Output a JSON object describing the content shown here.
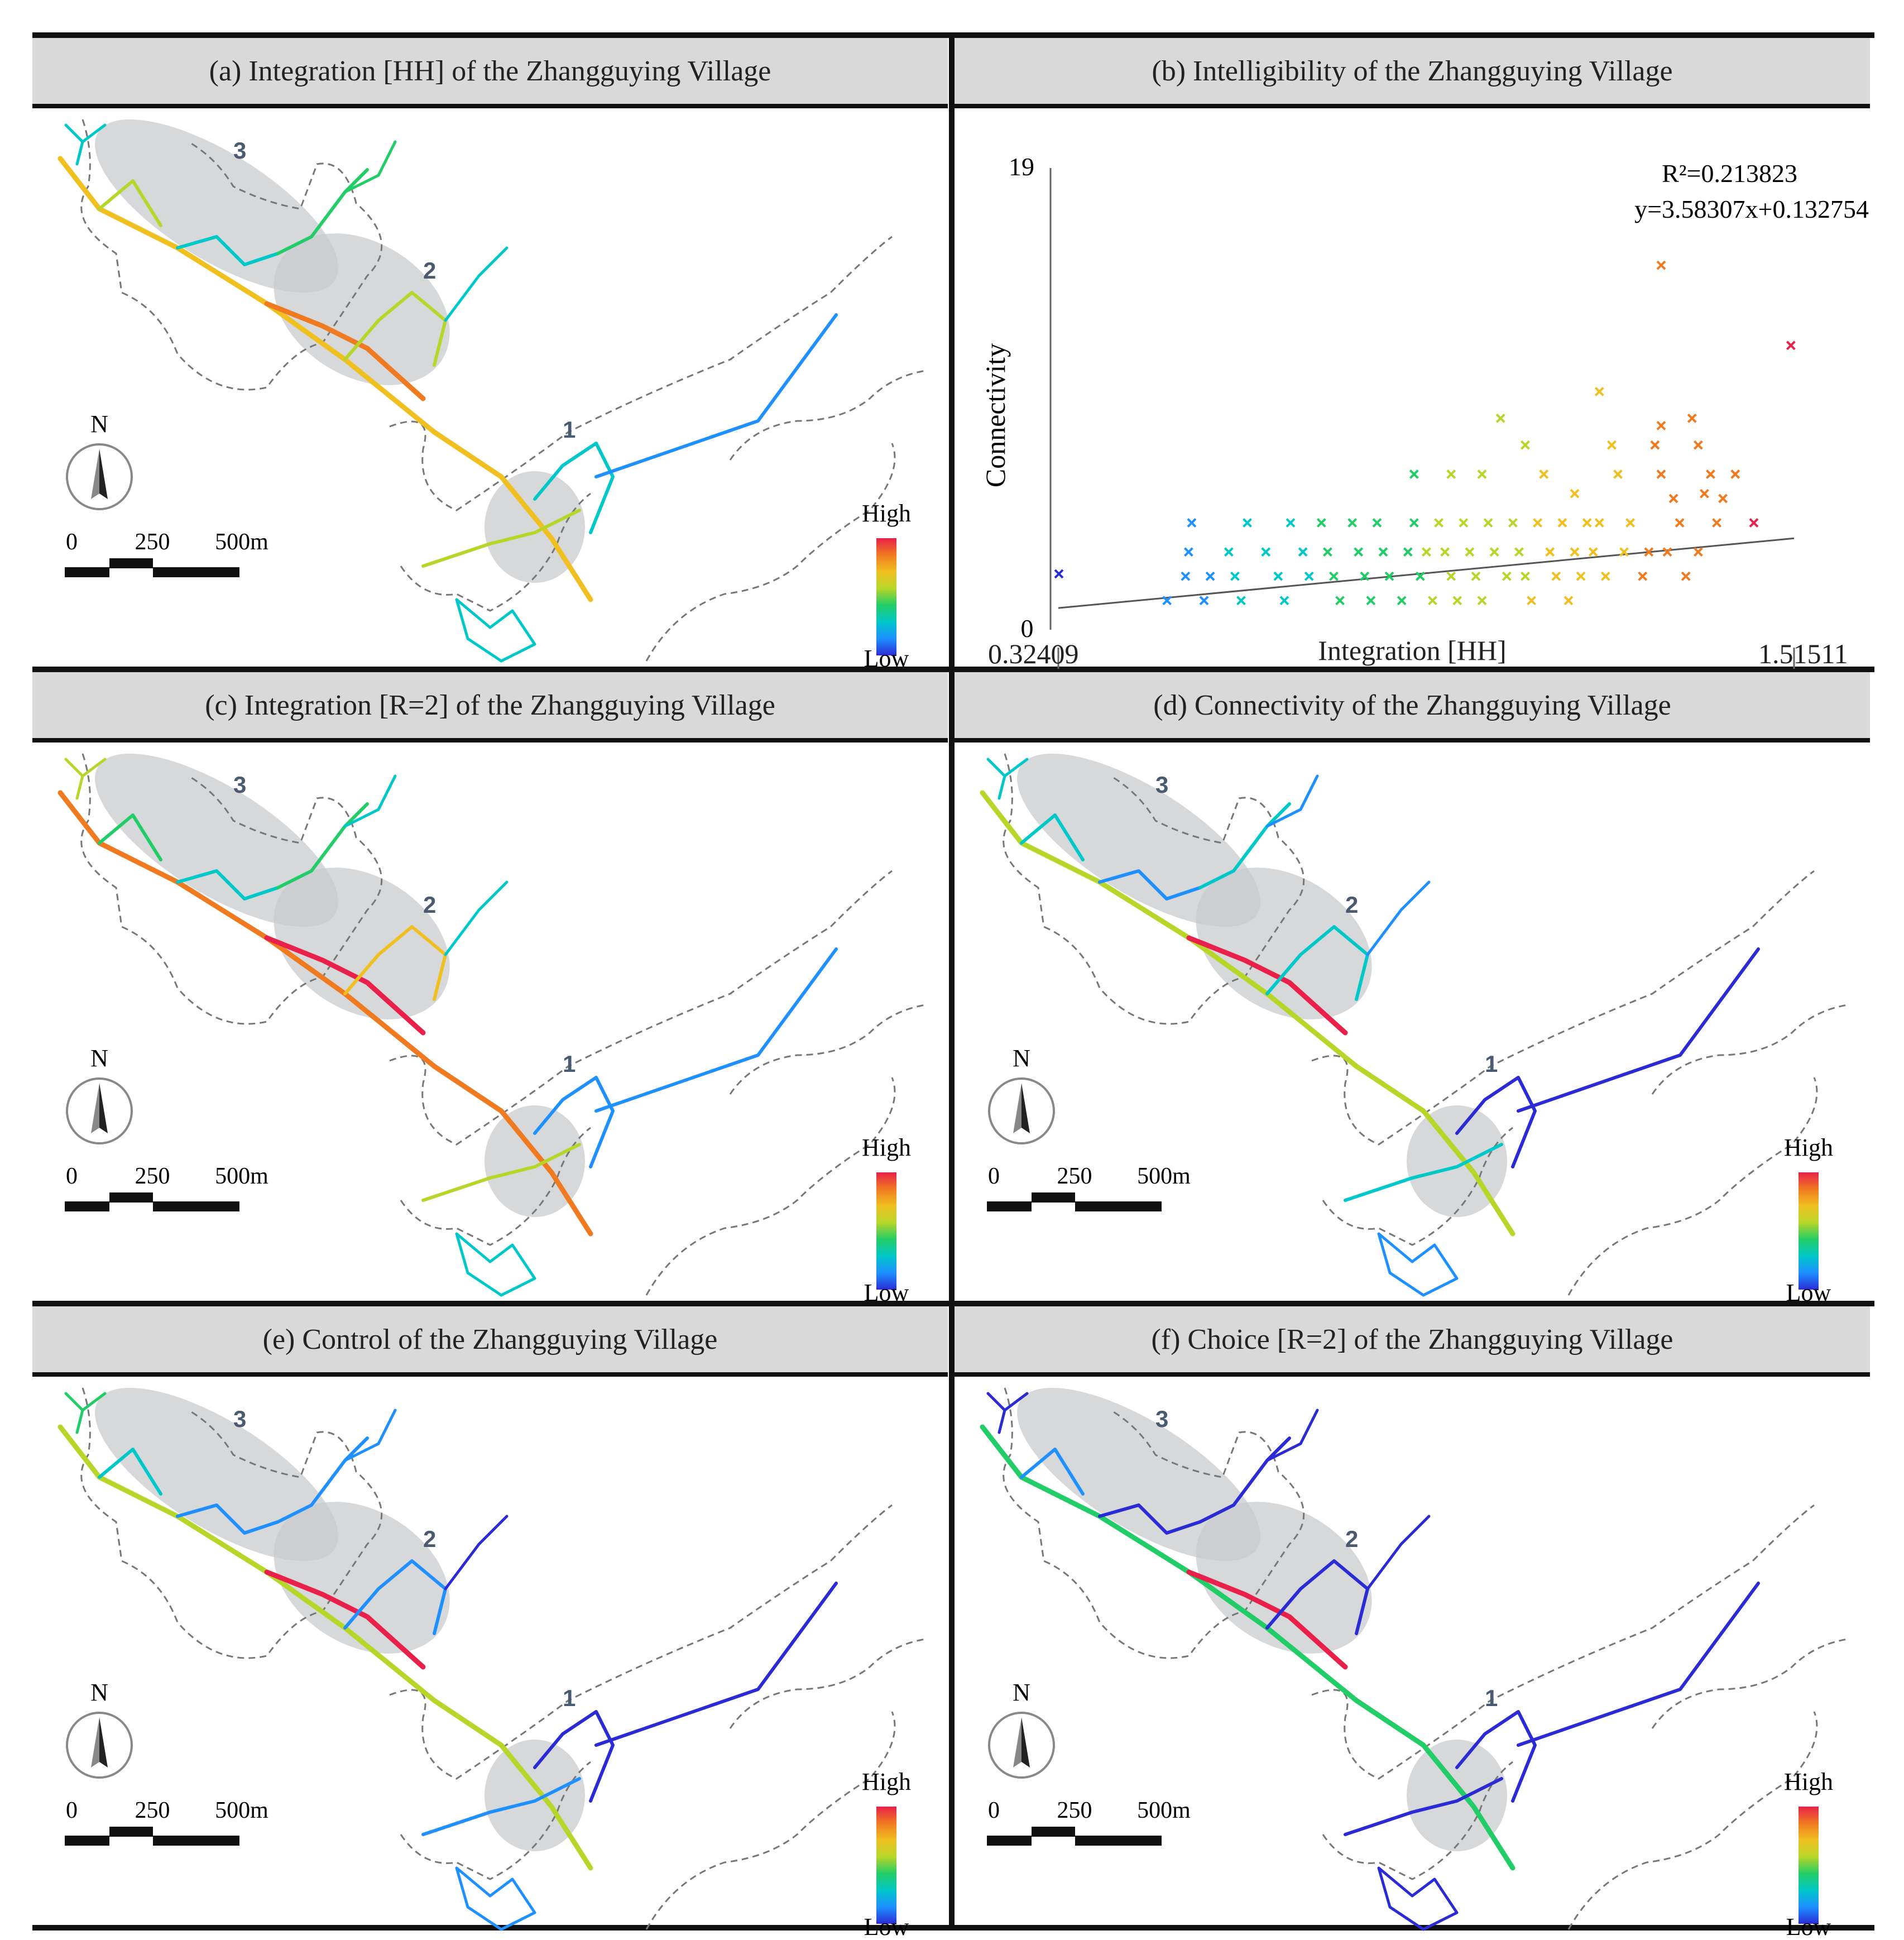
{
  "panels": {
    "a": {
      "title": "(a) Integration [HH] of the Zhangguying Village",
      "type": "map"
    },
    "b": {
      "title": "(b) Intelligibility of the Zhangguying Village",
      "type": "scatter"
    },
    "c": {
      "title": "(c) Integration [R=2] of the Zhangguying Village",
      "type": "map"
    },
    "d": {
      "title": "(d) Connectivity of the Zhangguying Village",
      "type": "map"
    },
    "e": {
      "title": "(e) Control of the Zhangguying Village",
      "type": "map"
    },
    "f": {
      "title": "(f) Choice [R=2] of the Zhangguying Village",
      "type": "map"
    }
  },
  "map_labels": {
    "north": "N",
    "scale_ticks": [
      "0",
      "250",
      "500m"
    ],
    "legend_high": "High",
    "legend_low": "Low",
    "zones": [
      "1",
      "2",
      "3"
    ]
  },
  "colors": {
    "ramp": [
      "#2b2bd6",
      "#1e90ff",
      "#00c8c8",
      "#22cc66",
      "#b8d62a",
      "#f0c020",
      "#f07a20",
      "#e8204a"
    ],
    "zone_fill": "#c9cbce",
    "header_bg": "#d9d9d9"
  },
  "chart_data": {
    "type": "scatter",
    "title": "(b) Intelligibility of the Zhangguying Village",
    "xlabel": "Integration [HH]",
    "ylabel": "Connectivity",
    "xlim": [
      0.32409,
      1.51511
    ],
    "ylim": [
      0,
      19
    ],
    "x_tick_labels": [
      "0.32409",
      "1.51511"
    ],
    "y_tick_labels": [
      "0",
      "19"
    ],
    "annotations": [
      "R²=0.213823",
      "y=3.58307x+0.132754"
    ],
    "regression": {
      "slope": 3.58307,
      "intercept": 0.132754
    },
    "marker": "x",
    "points": [
      [
        0.325,
        2.3
      ],
      [
        0.5,
        1.2
      ],
      [
        0.53,
        2.2
      ],
      [
        0.535,
        3.2
      ],
      [
        0.54,
        4.4
      ],
      [
        0.56,
        1.2
      ],
      [
        0.57,
        2.2
      ],
      [
        0.6,
        3.2
      ],
      [
        0.61,
        2.2
      ],
      [
        0.62,
        1.2
      ],
      [
        0.63,
        4.4
      ],
      [
        0.66,
        3.2
      ],
      [
        0.68,
        2.2
      ],
      [
        0.69,
        1.2
      ],
      [
        0.7,
        4.4
      ],
      [
        0.72,
        3.2
      ],
      [
        0.73,
        2.2
      ],
      [
        0.75,
        4.4
      ],
      [
        0.76,
        3.2
      ],
      [
        0.77,
        2.2
      ],
      [
        0.78,
        1.2
      ],
      [
        0.8,
        4.4
      ],
      [
        0.81,
        3.2
      ],
      [
        0.82,
        2.2
      ],
      [
        0.83,
        1.2
      ],
      [
        0.84,
        4.4
      ],
      [
        0.85,
        3.2
      ],
      [
        0.86,
        2.2
      ],
      [
        0.88,
        1.2
      ],
      [
        0.89,
        3.2
      ],
      [
        0.9,
        6.4
      ],
      [
        0.9,
        4.4
      ],
      [
        0.91,
        2.2
      ],
      [
        0.92,
        3.2
      ],
      [
        0.93,
        1.2
      ],
      [
        0.94,
        4.4
      ],
      [
        0.95,
        3.2
      ],
      [
        0.96,
        6.4
      ],
      [
        0.96,
        2.2
      ],
      [
        0.97,
        1.2
      ],
      [
        0.98,
        4.4
      ],
      [
        0.99,
        3.2
      ],
      [
        1.0,
        2.2
      ],
      [
        1.01,
        6.4
      ],
      [
        1.01,
        1.2
      ],
      [
        1.02,
        4.4
      ],
      [
        1.03,
        3.2
      ],
      [
        1.04,
        8.7
      ],
      [
        1.05,
        2.2
      ],
      [
        1.06,
        4.4
      ],
      [
        1.07,
        3.2
      ],
      [
        1.08,
        7.6
      ],
      [
        1.08,
        2.2
      ],
      [
        1.09,
        1.2
      ],
      [
        1.1,
        4.4
      ],
      [
        1.11,
        6.4
      ],
      [
        1.12,
        3.2
      ],
      [
        1.13,
        2.2
      ],
      [
        1.14,
        4.4
      ],
      [
        1.15,
        1.2
      ],
      [
        1.16,
        5.6
      ],
      [
        1.16,
        3.2
      ],
      [
        1.17,
        2.2
      ],
      [
        1.18,
        4.4
      ],
      [
        1.19,
        3.2
      ],
      [
        1.2,
        9.8
      ],
      [
        1.2,
        4.4
      ],
      [
        1.21,
        2.2
      ],
      [
        1.22,
        7.6
      ],
      [
        1.23,
        6.4
      ],
      [
        1.24,
        3.2
      ],
      [
        1.25,
        4.4
      ],
      [
        1.27,
        2.2
      ],
      [
        1.28,
        3.2
      ],
      [
        1.29,
        7.6
      ],
      [
        1.3,
        6.4
      ],
      [
        1.31,
        3.2
      ],
      [
        1.32,
        5.4
      ],
      [
        1.33,
        4.4
      ],
      [
        1.34,
        2.2
      ],
      [
        1.35,
        8.7
      ],
      [
        1.36,
        7.6
      ],
      [
        1.36,
        3.2
      ],
      [
        1.37,
        5.6
      ],
      [
        1.38,
        6.4
      ],
      [
        1.39,
        4.4
      ],
      [
        1.4,
        5.4
      ],
      [
        1.42,
        6.4
      ],
      [
        1.45,
        4.4
      ],
      [
        1.51,
        11.7
      ],
      [
        1.3,
        15.0
      ],
      [
        1.3,
        8.4
      ]
    ]
  }
}
